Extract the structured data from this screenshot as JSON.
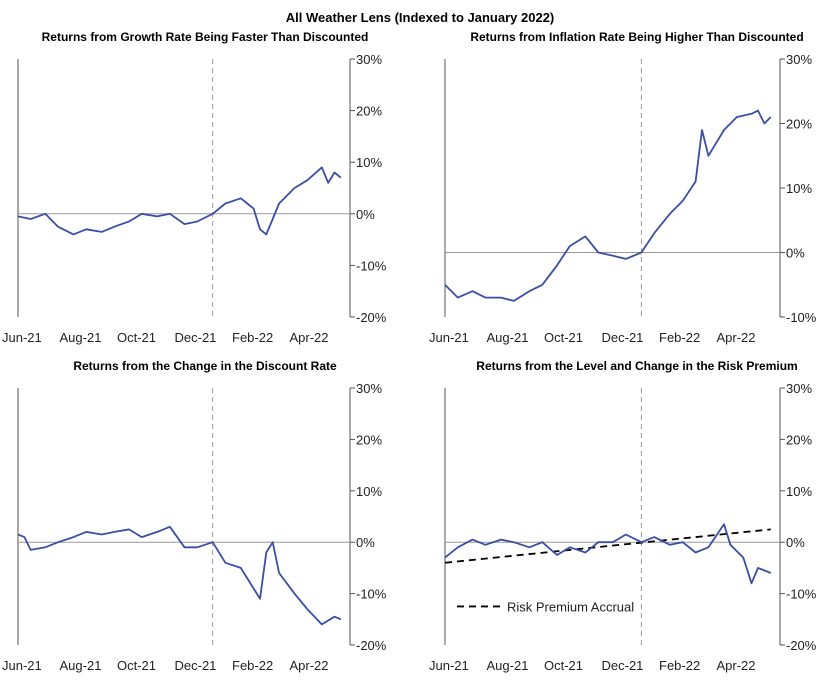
{
  "figure_title": "All Weather Lens (Indexed to January 2022)",
  "colors": {
    "series": "#3a4fa3",
    "accrual": "#000000",
    "axis": "#555555",
    "zero_line": "#999999",
    "marker_line": "#9a9a9a"
  },
  "chart_data": [
    {
      "type": "line",
      "title": "Returns from Growth Rate Being Faster Than Discounted",
      "x_ticks": [
        "Jun-21",
        "Aug-21",
        "Oct-21",
        "Dec-21",
        "Feb-22",
        "Apr-22"
      ],
      "x_range": [
        "2021-06-01",
        "2022-06-01"
      ],
      "ylim": [
        -20,
        30
      ],
      "y_ticks": [
        "30%",
        "20%",
        "10%",
        "0%",
        "-10%",
        "-20%"
      ],
      "y_tick_values": [
        30,
        20,
        10,
        0,
        -10,
        -20
      ],
      "y_axis_side": "right",
      "vline": "2022-01-01",
      "series": [
        {
          "x": [
            "2021-06-01",
            "2021-06-15",
            "2021-07-01",
            "2021-07-15",
            "2021-08-01",
            "2021-08-15",
            "2021-09-01",
            "2021-09-15",
            "2021-10-01",
            "2021-10-15",
            "2021-11-01",
            "2021-11-15",
            "2021-12-01",
            "2021-12-15",
            "2022-01-01",
            "2022-01-15",
            "2022-02-01",
            "2022-02-08",
            "2022-02-15",
            "2022-02-22",
            "2022-03-01",
            "2022-03-08",
            "2022-03-15",
            "2022-04-01",
            "2022-04-15",
            "2022-05-01",
            "2022-05-08",
            "2022-05-15",
            "2022-05-22"
          ],
          "values": [
            -0.5,
            -1,
            0,
            -2.5,
            -4,
            -3,
            -3.5,
            -2.5,
            -1.5,
            0,
            -0.5,
            0,
            -2,
            -1.5,
            0,
            2,
            3,
            2,
            1,
            -3,
            -4,
            -1,
            2,
            5,
            6.5,
            9,
            6,
            8,
            7
          ]
        }
      ]
    },
    {
      "type": "line",
      "title": "Returns from Inflation Rate Being Higher Than Discounted",
      "x_ticks": [
        "Jun-21",
        "Aug-21",
        "Oct-21",
        "Dec-21",
        "Feb-22",
        "Apr-22"
      ],
      "x_range": [
        "2021-06-01",
        "2022-06-01"
      ],
      "ylim": [
        -10,
        30
      ],
      "y_ticks": [
        "30%",
        "20%",
        "10%",
        "0%",
        "-10%"
      ],
      "y_tick_values": [
        30,
        20,
        10,
        0,
        -10
      ],
      "y_axis_side": "right",
      "vline": "2022-01-01",
      "series": [
        {
          "x": [
            "2021-06-01",
            "2021-06-15",
            "2021-07-01",
            "2021-07-15",
            "2021-08-01",
            "2021-08-15",
            "2021-09-01",
            "2021-09-15",
            "2021-10-01",
            "2021-10-15",
            "2021-11-01",
            "2021-11-15",
            "2021-12-01",
            "2021-12-15",
            "2022-01-01",
            "2022-01-15",
            "2022-02-01",
            "2022-02-15",
            "2022-03-01",
            "2022-03-08",
            "2022-03-15",
            "2022-04-01",
            "2022-04-15",
            "2022-05-01",
            "2022-05-08",
            "2022-05-15",
            "2022-05-22"
          ],
          "values": [
            -5,
            -7,
            -6,
            -7,
            -7,
            -7.5,
            -6,
            -5,
            -2,
            1,
            2.5,
            0,
            -0.5,
            -1,
            0,
            3,
            6,
            8,
            11,
            19,
            15,
            19,
            21,
            21.5,
            22,
            20,
            21
          ]
        }
      ]
    },
    {
      "type": "line",
      "title": "Returns from the Change in the Discount Rate",
      "x_ticks": [
        "Jun-21",
        "Aug-21",
        "Oct-21",
        "Dec-21",
        "Feb-22",
        "Apr-22"
      ],
      "x_range": [
        "2021-06-01",
        "2022-06-01"
      ],
      "ylim": [
        -20,
        30
      ],
      "y_ticks": [
        "30%",
        "20%",
        "10%",
        "0%",
        "-10%",
        "-20%"
      ],
      "y_tick_values": [
        30,
        20,
        10,
        0,
        -10,
        -20
      ],
      "y_axis_side": "right",
      "vline": "2022-01-01",
      "series": [
        {
          "x": [
            "2021-06-01",
            "2021-06-08",
            "2021-06-15",
            "2021-07-01",
            "2021-07-15",
            "2021-08-01",
            "2021-08-15",
            "2021-09-01",
            "2021-09-15",
            "2021-10-01",
            "2021-10-15",
            "2021-11-01",
            "2021-11-15",
            "2021-12-01",
            "2021-12-15",
            "2022-01-01",
            "2022-01-15",
            "2022-02-01",
            "2022-02-15",
            "2022-02-22",
            "2022-03-01",
            "2022-03-08",
            "2022-03-15",
            "2022-04-01",
            "2022-04-15",
            "2022-05-01",
            "2022-05-15",
            "2022-05-22"
          ],
          "values": [
            1.5,
            1,
            -1.5,
            -1,
            0,
            1,
            2,
            1.5,
            2,
            2.5,
            1,
            2,
            3,
            -1,
            -1,
            0,
            -4,
            -5,
            -9,
            -11,
            -2,
            0,
            -6,
            -10,
            -13,
            -16,
            -14.5,
            -15
          ]
        }
      ]
    },
    {
      "type": "line",
      "title": "Returns from the Level and Change in the Risk Premium",
      "x_ticks": [
        "Jun-21",
        "Aug-21",
        "Oct-21",
        "Dec-21",
        "Feb-22",
        "Apr-22"
      ],
      "x_range": [
        "2021-06-01",
        "2022-06-01"
      ],
      "ylim": [
        -20,
        30
      ],
      "y_ticks": [
        "30%",
        "20%",
        "10%",
        "0%",
        "-10%",
        "-20%"
      ],
      "y_tick_values": [
        30,
        20,
        10,
        0,
        -10,
        -20
      ],
      "y_axis_side": "right",
      "vline": "2022-01-01",
      "legend": {
        "label": "Risk Premium Accrual",
        "placement": "bottom-left"
      },
      "accrual": {
        "x": [
          "2021-06-01",
          "2022-05-22"
        ],
        "values": [
          -4,
          2.5
        ]
      },
      "series": [
        {
          "x": [
            "2021-06-01",
            "2021-06-15",
            "2021-07-01",
            "2021-07-15",
            "2021-08-01",
            "2021-08-15",
            "2021-09-01",
            "2021-09-15",
            "2021-10-01",
            "2021-10-15",
            "2021-11-01",
            "2021-11-15",
            "2021-12-01",
            "2021-12-15",
            "2022-01-01",
            "2022-01-15",
            "2022-02-01",
            "2022-02-15",
            "2022-03-01",
            "2022-03-15",
            "2022-04-01",
            "2022-04-08",
            "2022-04-22",
            "2022-05-01",
            "2022-05-08",
            "2022-05-22"
          ],
          "values": [
            -3,
            -1,
            0.5,
            -0.5,
            0.5,
            0,
            -1,
            0,
            -2.5,
            -1,
            -2,
            0,
            0,
            1.5,
            0,
            1,
            -0.5,
            0,
            -2,
            -1,
            3.5,
            -0.5,
            -3,
            -8,
            -5,
            -6
          ]
        }
      ]
    }
  ]
}
